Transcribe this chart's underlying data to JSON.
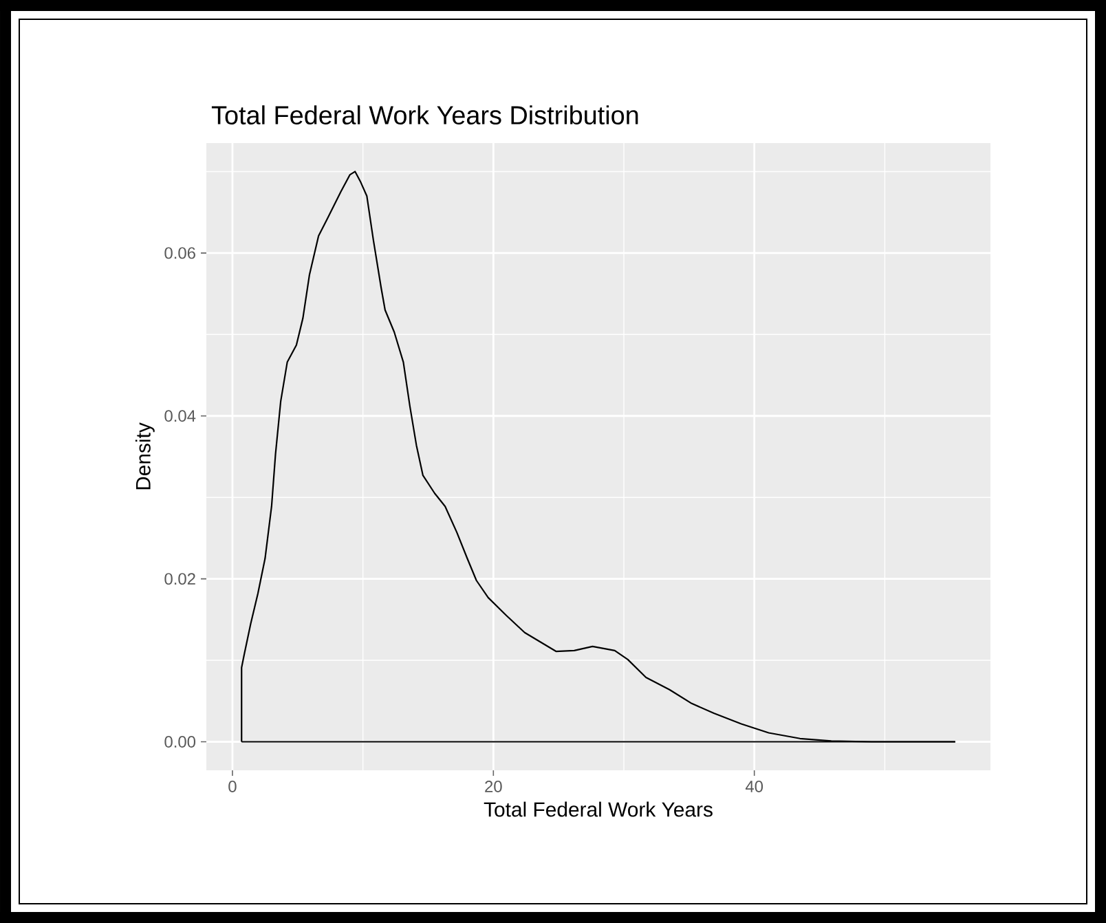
{
  "chart_data": {
    "type": "line",
    "title": "Total Federal Work Years Distribution",
    "xlabel": "Total Federal Work Years",
    "ylabel": "Density",
    "xlim": [
      -2,
      58.1
    ],
    "ylim": [
      -0.0035,
      0.0735
    ],
    "xticks": [
      0,
      20,
      40
    ],
    "yticks": [
      {
        "value": 0,
        "label": "0.00"
      },
      {
        "value": 0.02,
        "label": "0.02"
      },
      {
        "value": 0.04,
        "label": "0.04"
      },
      {
        "value": 0.06,
        "label": "0.06"
      }
    ],
    "grid": true,
    "series": [
      {
        "color": "#000000",
        "x": [
          0.7,
          0.7,
          0.9,
          1.4,
          1.95,
          2.5,
          3.0,
          3.3,
          3.7,
          4.2,
          4.9,
          5.4,
          5.9,
          6.6,
          7.3,
          8.3,
          9.0,
          9.4,
          9.8,
          10.3,
          10.8,
          11.4,
          11.7,
          12.4,
          13.1,
          13.6,
          14.1,
          14.6,
          15.5,
          16.3,
          17.2,
          18.0,
          18.7,
          19.6,
          21.0,
          22.4,
          24.8,
          26.2,
          27.6,
          29.3,
          30.3,
          31.7,
          33.5,
          35.2,
          36.9,
          39.0,
          41.1,
          43.5,
          45.9,
          49.0,
          55.4
        ],
        "values": [
          0,
          0.0091,
          0.0107,
          0.0145,
          0.0182,
          0.0225,
          0.0289,
          0.0353,
          0.0418,
          0.0466,
          0.0487,
          0.052,
          0.0573,
          0.0621,
          0.0643,
          0.0675,
          0.0696,
          0.07,
          0.0688,
          0.067,
          0.0616,
          0.0557,
          0.053,
          0.0503,
          0.0466,
          0.0412,
          0.0364,
          0.0327,
          0.0305,
          0.0289,
          0.0257,
          0.0225,
          0.0198,
          0.0177,
          0.0155,
          0.0134,
          0.0111,
          0.0112,
          0.0117,
          0.0112,
          0.0101,
          0.0079,
          0.0064,
          0.0047,
          0.0035,
          0.0022,
          0.0011,
          0.0004,
          0.0001,
          0,
          0
        ]
      },
      {
        "color": "#000000",
        "x": [
          0.7,
          55.4
        ],
        "values": [
          0,
          0
        ]
      }
    ]
  }
}
